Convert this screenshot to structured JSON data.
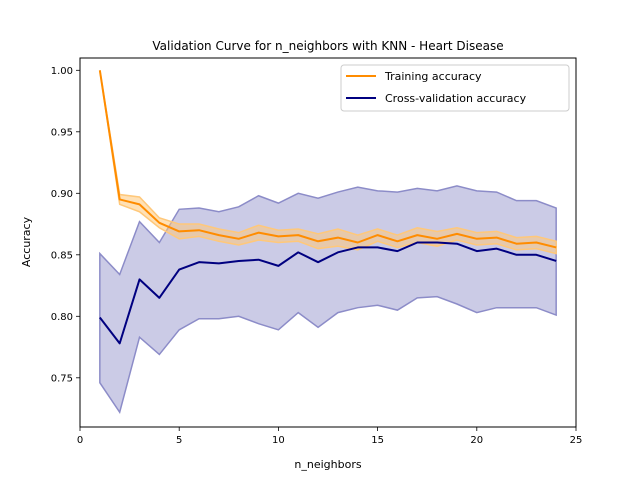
{
  "chart_data": {
    "type": "line",
    "title": "Validation Curve for n_neighbors with KNN - Heart Disease",
    "xlabel": "n_neighbors",
    "ylabel": "Accuracy",
    "xlim": [
      0.0,
      25.0
    ],
    "ylim": [
      0.71,
      1.01
    ],
    "xticks": [
      0,
      5,
      10,
      15,
      20,
      25
    ],
    "yticks": [
      0.75,
      0.8,
      0.85,
      0.9,
      0.95,
      1.0
    ],
    "xtick_labels": [
      "0",
      "5",
      "10",
      "15",
      "20",
      "25"
    ],
    "ytick_labels": [
      "0.75",
      "0.80",
      "0.85",
      "0.90",
      "0.95",
      "1.00"
    ],
    "grid": false,
    "legend_position": "top-right",
    "x": [
      1,
      2,
      3,
      4,
      5,
      6,
      7,
      8,
      9,
      10,
      11,
      12,
      13,
      14,
      15,
      16,
      17,
      18,
      19,
      20,
      21,
      22,
      23,
      24
    ],
    "series": [
      {
        "name": "Training accuracy",
        "color": "#ff8c00",
        "band_color": "#ffc87a",
        "values": [
          1.0,
          0.895,
          0.891,
          0.876,
          0.869,
          0.87,
          0.866,
          0.863,
          0.868,
          0.865,
          0.866,
          0.861,
          0.864,
          0.86,
          0.866,
          0.861,
          0.866,
          0.863,
          0.867,
          0.863,
          0.864,
          0.859,
          0.86,
          0.856
        ],
        "upper": [
          1.0,
          0.899,
          0.897,
          0.88,
          0.875,
          0.875,
          0.871,
          0.868,
          0.874,
          0.87,
          0.871,
          0.867,
          0.871,
          0.866,
          0.871,
          0.866,
          0.872,
          0.869,
          0.872,
          0.868,
          0.869,
          0.864,
          0.865,
          0.861
        ],
        "lower": [
          1.0,
          0.891,
          0.885,
          0.872,
          0.863,
          0.865,
          0.861,
          0.858,
          0.862,
          0.86,
          0.861,
          0.855,
          0.857,
          0.854,
          0.861,
          0.856,
          0.86,
          0.857,
          0.862,
          0.858,
          0.859,
          0.854,
          0.855,
          0.851
        ]
      },
      {
        "name": "Cross-validation accuracy",
        "color": "#000080",
        "band_color": "#8c8cc8",
        "values": [
          0.799,
          0.778,
          0.83,
          0.815,
          0.838,
          0.844,
          0.843,
          0.845,
          0.846,
          0.841,
          0.852,
          0.844,
          0.852,
          0.856,
          0.856,
          0.853,
          0.86,
          0.86,
          0.859,
          0.853,
          0.855,
          0.85,
          0.85,
          0.845
        ],
        "upper": [
          0.851,
          0.834,
          0.877,
          0.86,
          0.887,
          0.888,
          0.885,
          0.889,
          0.898,
          0.892,
          0.9,
          0.896,
          0.901,
          0.905,
          0.902,
          0.901,
          0.904,
          0.902,
          0.906,
          0.902,
          0.901,
          0.894,
          0.894,
          0.888
        ],
        "lower": [
          0.746,
          0.722,
          0.783,
          0.769,
          0.789,
          0.798,
          0.798,
          0.8,
          0.794,
          0.789,
          0.803,
          0.791,
          0.803,
          0.807,
          0.809,
          0.805,
          0.815,
          0.816,
          0.81,
          0.803,
          0.807,
          0.807,
          0.807,
          0.801
        ]
      }
    ]
  }
}
